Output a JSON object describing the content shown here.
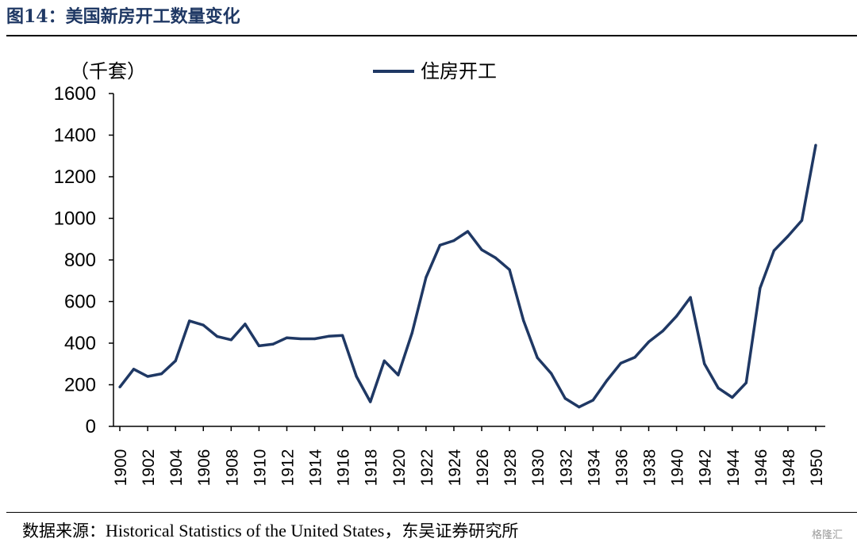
{
  "figure_title": "图14：美国新房开工数量变化",
  "source_label": "数据来源：",
  "source_text": "Historical Statistics of the United States，",
  "source_org": "东吴证券研究所",
  "watermark": "格隆汇",
  "colors": {
    "line": "#1f3864",
    "title": "#1f3864"
  },
  "chart_data": {
    "type": "line",
    "unit_label": "（千套）",
    "ylim": [
      0,
      1600
    ],
    "yticks": [
      0,
      200,
      400,
      600,
      800,
      1000,
      1200,
      1400,
      1600
    ],
    "xlim": [
      1900,
      1950
    ],
    "xtick_labels": [
      "1900",
      "1902",
      "1904",
      "1906",
      "1908",
      "1910",
      "1912",
      "1914",
      "1916",
      "1918",
      "1920",
      "1922",
      "1924",
      "1926",
      "1928",
      "1930",
      "1932",
      "1934",
      "1936",
      "1938",
      "1940",
      "1942",
      "1944",
      "1946",
      "1948",
      "1950"
    ],
    "legend": "top-center",
    "grid": false,
    "series": [
      {
        "name": "住房开工",
        "x": [
          1900,
          1901,
          1902,
          1903,
          1904,
          1905,
          1906,
          1907,
          1908,
          1909,
          1910,
          1911,
          1912,
          1913,
          1914,
          1915,
          1916,
          1917,
          1918,
          1919,
          1920,
          1921,
          1922,
          1923,
          1924,
          1925,
          1926,
          1927,
          1928,
          1929,
          1930,
          1931,
          1932,
          1933,
          1934,
          1935,
          1936,
          1937,
          1938,
          1939,
          1940,
          1941,
          1942,
          1943,
          1944,
          1945,
          1946,
          1947,
          1948,
          1949,
          1950
        ],
        "values": [
          189,
          275,
          240,
          253,
          315,
          507,
          487,
          432,
          416,
          492,
          387,
          395,
          426,
          421,
          421,
          433,
          437,
          240,
          118,
          315,
          247,
          449,
          716,
          871,
          893,
          937,
          849,
          810,
          753,
          509,
          330,
          254,
          134,
          93,
          126,
          221,
          304,
          332,
          406,
          458,
          530,
          620,
          301,
          184,
          139,
          209,
          664,
          845,
          914,
          990,
          1352
        ]
      }
    ]
  }
}
